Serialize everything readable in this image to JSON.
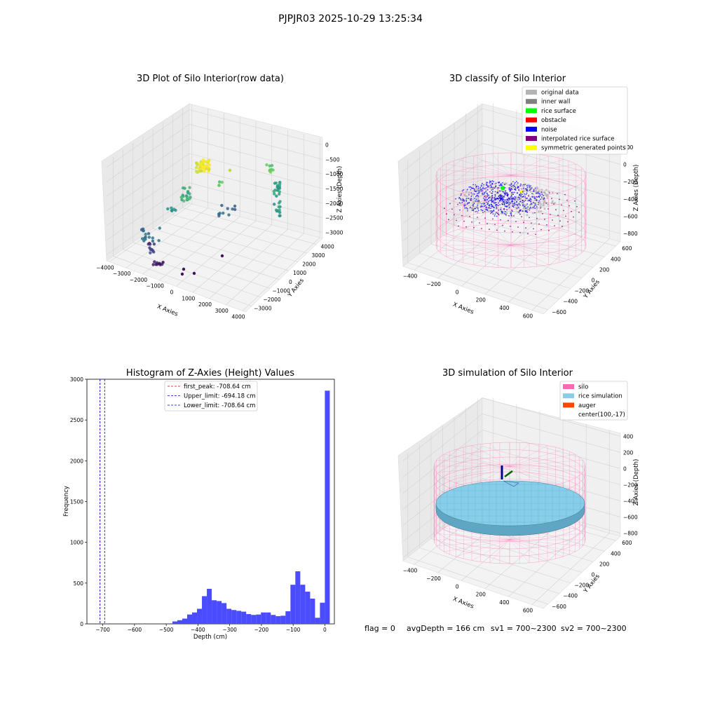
{
  "suptitle": "PJPJR03 2025-10-29 13:25:34",
  "footer": {
    "flag": "flag = 0",
    "avgDepth": "avgDepth = 166 cm",
    "sv1": "sv1 = 700~2300",
    "sv2": "sv2 = 700~2300"
  },
  "colors": {
    "histogram_bar": "#4b4bff",
    "first_peak": "#ff0000",
    "limits": "#0000cc",
    "silo": "#ff69b4",
    "rice_simulation": "#87ceeb",
    "auger": "#ff4500",
    "noise": "#0000ff",
    "inner_wall": "#888888",
    "rice_surface": "#00ff00",
    "symmetric": "#ffff00"
  },
  "chart_data": [
    {
      "type": "scatter",
      "title": "3D Plot of Silo Interior(row data)",
      "xlabel": "X Axies",
      "ylabel": "Y Axies",
      "zlabel": "Z Axies (Depth)",
      "x_ticks": [
        "−4000",
        "−3000",
        "−2000",
        "−1000",
        "0",
        "1000",
        "2000",
        "3000",
        "4000"
      ],
      "y_ticks": [
        "−3000",
        "−2000",
        "−1000",
        "0",
        "1000",
        "2000",
        "3000",
        "4000"
      ],
      "z_ticks": [
        "0",
        "−500",
        "−1000",
        "−1500",
        "−2000",
        "−2500",
        "−3000"
      ],
      "colormap": "viridis by depth"
    },
    {
      "type": "scatter",
      "title": "3D classify of Silo Interior",
      "xlabel": "X Axies",
      "ylabel": "Y Axies",
      "zlabel": "Z Axies (Depth)",
      "x_ticks": [
        "−400",
        "−200",
        "0",
        "200",
        "400",
        "600"
      ],
      "y_ticks": [
        "−600",
        "−400",
        "−200",
        "0",
        "200",
        "400",
        "600"
      ],
      "z_ticks": [
        "200",
        "0",
        "−200",
        "−400",
        "−600",
        "−800"
      ],
      "z_partial_tick": "00",
      "legend": [
        {
          "label": "original data",
          "color": "#b4b4b4"
        },
        {
          "label": "inner wall",
          "color": "#808080"
        },
        {
          "label": "rice surface",
          "color": "#00ff00"
        },
        {
          "label": "obstacle",
          "color": "#ff0000"
        },
        {
          "label": "noise",
          "color": "#0000ff"
        },
        {
          "label": "interpolated rice surface",
          "color": "#800080"
        },
        {
          "label": "symmetric generated points",
          "color": "#ffff00"
        }
      ]
    },
    {
      "type": "bar",
      "title": "Histogram of Z-Axies (Height) Values",
      "xlabel": "Depth (cm)",
      "ylabel": "Frequency",
      "xlim": [
        -750,
        30
      ],
      "ylim": [
        0,
        3000
      ],
      "x_ticks": [
        -700,
        -600,
        -500,
        -400,
        -300,
        -200,
        -100,
        0
      ],
      "y_ticks": [
        0,
        500,
        1000,
        1500,
        2000,
        2500,
        3000
      ],
      "bin_width": 15.5,
      "bins": [
        {
          "x": -465,
          "y": 30
        },
        {
          "x": -449.5,
          "y": 45
        },
        {
          "x": -434,
          "y": 65
        },
        {
          "x": -418.5,
          "y": 115
        },
        {
          "x": -403,
          "y": 140
        },
        {
          "x": -387.5,
          "y": 185
        },
        {
          "x": -372,
          "y": 340
        },
        {
          "x": -356.5,
          "y": 430
        },
        {
          "x": -341,
          "y": 290
        },
        {
          "x": -325.5,
          "y": 280
        },
        {
          "x": -310,
          "y": 255
        },
        {
          "x": -294.5,
          "y": 185
        },
        {
          "x": -279,
          "y": 170
        },
        {
          "x": -263.5,
          "y": 160
        },
        {
          "x": -248,
          "y": 150
        },
        {
          "x": -232.5,
          "y": 120
        },
        {
          "x": -217,
          "y": 110
        },
        {
          "x": -201.5,
          "y": 115
        },
        {
          "x": -186,
          "y": 140
        },
        {
          "x": -170.5,
          "y": 140
        },
        {
          "x": -155,
          "y": 110
        },
        {
          "x": -139.5,
          "y": 95
        },
        {
          "x": -124,
          "y": 100
        },
        {
          "x": -108.5,
          "y": 155
        },
        {
          "x": -93,
          "y": 480
        },
        {
          "x": -77.5,
          "y": 645
        },
        {
          "x": -62,
          "y": 480
        },
        {
          "x": -46.5,
          "y": 395
        },
        {
          "x": -31,
          "y": 310
        },
        {
          "x": -15.5,
          "y": 75
        },
        {
          "x": 0,
          "y": 260
        },
        {
          "x": 15.5,
          "y": 2860
        }
      ],
      "lines": [
        {
          "label": "first_peak: -708.64 cm",
          "x": -708.64,
          "color": "#ff0000"
        },
        {
          "label": "Upper_limit: -694.18 cm",
          "x": -694.18,
          "color": "#0000cc"
        },
        {
          "label": "Lower_limit: -708.64 cm",
          "x": -708.64,
          "color": "#0000cc"
        }
      ]
    },
    {
      "type": "scatter",
      "title": "3D simulation of Silo Interior",
      "xlabel": "X Axies",
      "ylabel": "Y Axies",
      "zlabel": "Z Axies (Depth)",
      "x_ticks": [
        "−400",
        "−200",
        "0",
        "200",
        "400",
        "600"
      ],
      "y_ticks": [
        "−600",
        "−400",
        "−200",
        "0",
        "200",
        "400",
        "600"
      ],
      "z_ticks": [
        "400",
        "200",
        "0",
        "−200",
        "−400",
        "−600",
        "−800"
      ],
      "legend": [
        {
          "label": "silo",
          "color": "#ff69b4"
        },
        {
          "label": "rice simulation",
          "color": "#87ceeb"
        },
        {
          "label": "auger",
          "color": "#ff4500"
        },
        {
          "label": "center(100,-17)",
          "color": ""
        }
      ]
    }
  ]
}
